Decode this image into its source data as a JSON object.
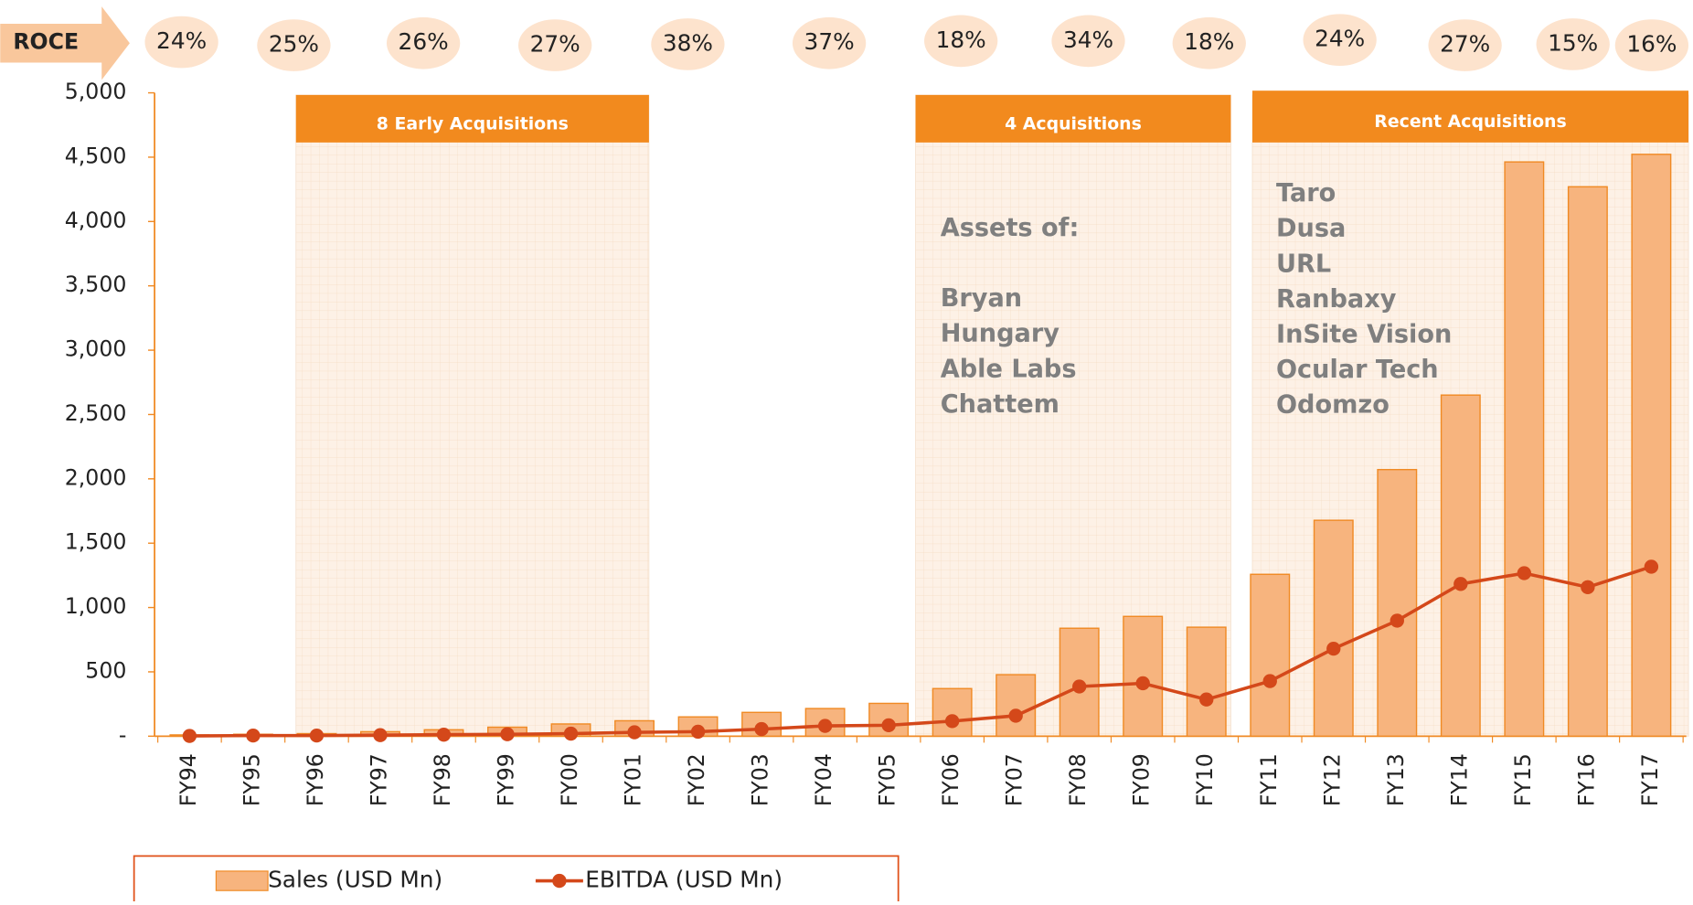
{
  "chart_data": {
    "type": "bar",
    "categories": [
      "FY94",
      "FY95",
      "FY96",
      "FY97",
      "FY98",
      "FY99",
      "FY00",
      "FY01",
      "FY02",
      "FY03",
      "FY04",
      "FY05",
      "FY06",
      "FY07",
      "FY08",
      "FY09",
      "FY10",
      "FY11",
      "FY12",
      "FY13",
      "FY14",
      "FY15",
      "FY16",
      "FY17"
    ],
    "series": [
      {
        "name": "Sales (USD Mn)",
        "type": "bar",
        "color": "#f7b47e",
        "values": [
          10,
          15,
          20,
          35,
          50,
          70,
          95,
          120,
          150,
          185,
          215,
          255,
          370,
          478,
          839,
          931,
          847,
          1258,
          1678,
          2072,
          2651,
          4463,
          4270,
          4522
        ]
      },
      {
        "name": "EBITDA (USD Mn)",
        "type": "line",
        "color": "#d4481a",
        "values": [
          2,
          5,
          5,
          8,
          12,
          15,
          20,
          30,
          35,
          55,
          80,
          85,
          117,
          159,
          386,
          411,
          285,
          428,
          680,
          898,
          1183,
          1267,
          1158,
          1317
        ]
      }
    ],
    "ylim": [
      0,
      5000
    ],
    "yticks": [
      {
        "value": 0,
        "label": "-"
      },
      {
        "value": 500,
        "label": "500"
      },
      {
        "value": 1000,
        "label": "1,000"
      },
      {
        "value": 1500,
        "label": "1,500"
      },
      {
        "value": 2000,
        "label": "2,000"
      },
      {
        "value": 2500,
        "label": "2,500"
      },
      {
        "value": 3000,
        "label": "3,000"
      },
      {
        "value": 3500,
        "label": "3,500"
      },
      {
        "value": 4000,
        "label": "4,000"
      },
      {
        "value": 4500,
        "label": "4,500"
      },
      {
        "value": 5000,
        "label": "5,000"
      }
    ],
    "roce": {
      "label": "ROCE",
      "values": [
        24,
        25,
        26,
        27,
        38,
        37,
        18,
        34,
        18,
        24,
        27,
        15,
        16
      ],
      "value_labels": [
        "24%",
        "25%",
        "26%",
        "27%",
        "38%",
        "37%",
        "18%",
        "34%",
        "18%",
        "24%",
        "27%",
        "15%",
        "16%"
      ]
    },
    "regions": [
      {
        "label": "8 Early Acquisitions",
        "text": []
      },
      {
        "label": "4 Acquisitions",
        "text": [
          "Assets of:",
          "",
          "Bryan",
          "Hungary",
          "Able Labs",
          "Chattem"
        ]
      },
      {
        "label": "Recent Acquisitions",
        "text": [
          "Taro",
          "Dusa",
          "URL",
          "Ranbaxy",
          "InSite Vision",
          "Ocular Tech",
          "Odomzo"
        ]
      }
    ]
  }
}
